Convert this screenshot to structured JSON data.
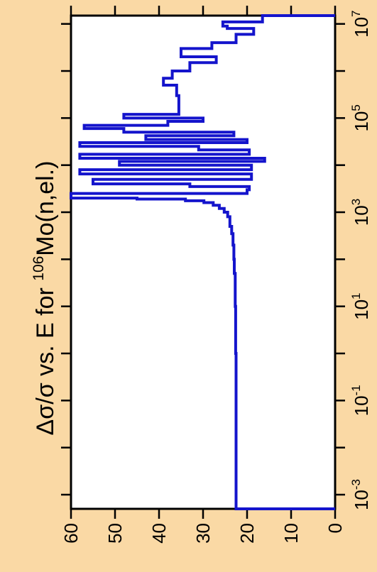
{
  "chart_data": {
    "type": "line",
    "title": "",
    "ylabel": "Δσ/σ vs. E for 106Mo(n,el.)",
    "ylabel_parts": {
      "prefix": "Δσ/σ vs. E for ",
      "superscript": "106",
      "suffix": "Mo(n,el.)"
    },
    "value_axis": {
      "ticks": [
        "0",
        "10",
        "20",
        "30",
        "40",
        "50",
        "60"
      ],
      "range": [
        0,
        60
      ]
    },
    "energy_axis": {
      "scale": "log",
      "range": [
        0.0005,
        15000000
      ],
      "ticks": [
        {
          "base": "10",
          "exp": "-3"
        },
        {
          "base": "10",
          "exp": "-1"
        },
        {
          "base": "10",
          "exp": "1"
        },
        {
          "base": "10",
          "exp": "3"
        },
        {
          "base": "10",
          "exp": "5"
        },
        {
          "base": "10",
          "exp": "7"
        }
      ]
    },
    "line_color": "#1414cc",
    "background": "#fad9a5",
    "plot_background": "#ffffff",
    "series": [
      {
        "points": [
          [
            0.0005,
            0
          ],
          [
            0.0005,
            22.5
          ],
          [
            1,
            22.5
          ],
          [
            1,
            22.6
          ],
          [
            10,
            22.6
          ],
          [
            10,
            22.7
          ],
          [
            50,
            22.7
          ],
          [
            50,
            22.9
          ],
          [
            100,
            22.9
          ],
          [
            100,
            23.0
          ],
          [
            200,
            23.0
          ],
          [
            200,
            23.2
          ],
          [
            350,
            23.2
          ],
          [
            350,
            23.5
          ],
          [
            500,
            23.5
          ],
          [
            500,
            23.9
          ],
          [
            800,
            23.9
          ],
          [
            800,
            24.4
          ],
          [
            1000,
            24.4
          ],
          [
            1000,
            25.2
          ],
          [
            1200,
            25.2
          ],
          [
            1200,
            26.3
          ],
          [
            1400,
            26.3
          ],
          [
            1400,
            27.7
          ],
          [
            1600,
            27.7
          ],
          [
            1600,
            29.8
          ],
          [
            1750,
            29.8
          ],
          [
            1750,
            34
          ],
          [
            1900,
            34
          ],
          [
            1900,
            45
          ],
          [
            2000,
            45
          ],
          [
            2000,
            60
          ],
          [
            2500,
            60
          ],
          [
            2500,
            20
          ],
          [
            3000,
            20
          ],
          [
            3000,
            19.5
          ],
          [
            3500,
            19.5
          ],
          [
            3500,
            33
          ],
          [
            4000,
            33
          ],
          [
            4000,
            55
          ],
          [
            5000,
            55
          ],
          [
            5000,
            19
          ],
          [
            6500,
            19
          ],
          [
            6500,
            58
          ],
          [
            8000,
            58
          ],
          [
            8000,
            19
          ],
          [
            10000,
            19
          ],
          [
            10000,
            49
          ],
          [
            12000,
            49
          ],
          [
            12000,
            16
          ],
          [
            14000,
            16
          ],
          [
            14000,
            58
          ],
          [
            17000,
            58
          ],
          [
            17000,
            19.5
          ],
          [
            21000,
            19.5
          ],
          [
            21000,
            31
          ],
          [
            25000,
            31
          ],
          [
            25000,
            58
          ],
          [
            30000,
            58
          ],
          [
            30000,
            20
          ],
          [
            35000,
            20
          ],
          [
            35000,
            43
          ],
          [
            42000,
            43
          ],
          [
            42000,
            23
          ],
          [
            50000,
            23
          ],
          [
            50000,
            48
          ],
          [
            60000,
            48
          ],
          [
            60000,
            57
          ],
          [
            70000,
            57
          ],
          [
            70000,
            38
          ],
          [
            85000,
            38
          ],
          [
            85000,
            30
          ],
          [
            100000,
            30
          ],
          [
            100000,
            48
          ],
          [
            120000,
            48
          ],
          [
            120000,
            35.5
          ],
          [
            300000,
            35.5
          ],
          [
            300000,
            36
          ],
          [
            500000,
            36
          ],
          [
            500000,
            39
          ],
          [
            700000,
            39
          ],
          [
            700000,
            37
          ],
          [
            1000000,
            37
          ],
          [
            1000000,
            33
          ],
          [
            1500000,
            33
          ],
          [
            1500000,
            27
          ],
          [
            2000000,
            27
          ],
          [
            2000000,
            35
          ],
          [
            3000000,
            35
          ],
          [
            3000000,
            28
          ],
          [
            4000000,
            28
          ],
          [
            4000000,
            22.5
          ],
          [
            6000000,
            22.5
          ],
          [
            6000000,
            18.5
          ],
          [
            8000000,
            18.5
          ],
          [
            8000000,
            24.5
          ],
          [
            9000000,
            24.5
          ],
          [
            9000000,
            25.5
          ],
          [
            11000000,
            25.5
          ],
          [
            11000000,
            16.5
          ],
          [
            15000000,
            16.5
          ],
          [
            15000000,
            0
          ]
        ]
      }
    ]
  }
}
